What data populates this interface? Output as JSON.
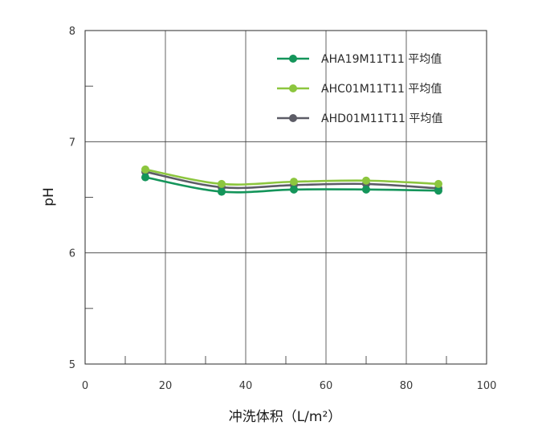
{
  "chart_data": {
    "type": "line",
    "xlabel": "冲洗体积（L/m²）",
    "ylabel": "pH",
    "xlim": [
      0,
      100
    ],
    "ylim": [
      5,
      8
    ],
    "x_ticks": [
      "0",
      "20",
      "40",
      "60",
      "80",
      "100"
    ],
    "y_ticks": [
      "5",
      "6",
      "7",
      "8"
    ],
    "grid": true,
    "legend_position": "top-right",
    "x": [
      15,
      34,
      52,
      70,
      88
    ],
    "series": [
      {
        "name": "AHA19M11T11 平均值",
        "color": "#14955a",
        "values": [
          6.68,
          6.55,
          6.57,
          6.57,
          6.56
        ]
      },
      {
        "name": "AHC01M11T11 平均值",
        "color": "#8cc63e",
        "values": [
          6.75,
          6.62,
          6.64,
          6.65,
          6.62
        ]
      },
      {
        "name": "AHD01M11T11 平均值",
        "color": "#5c5c66",
        "values": [
          6.73,
          6.59,
          6.61,
          6.62,
          6.58
        ]
      }
    ]
  }
}
